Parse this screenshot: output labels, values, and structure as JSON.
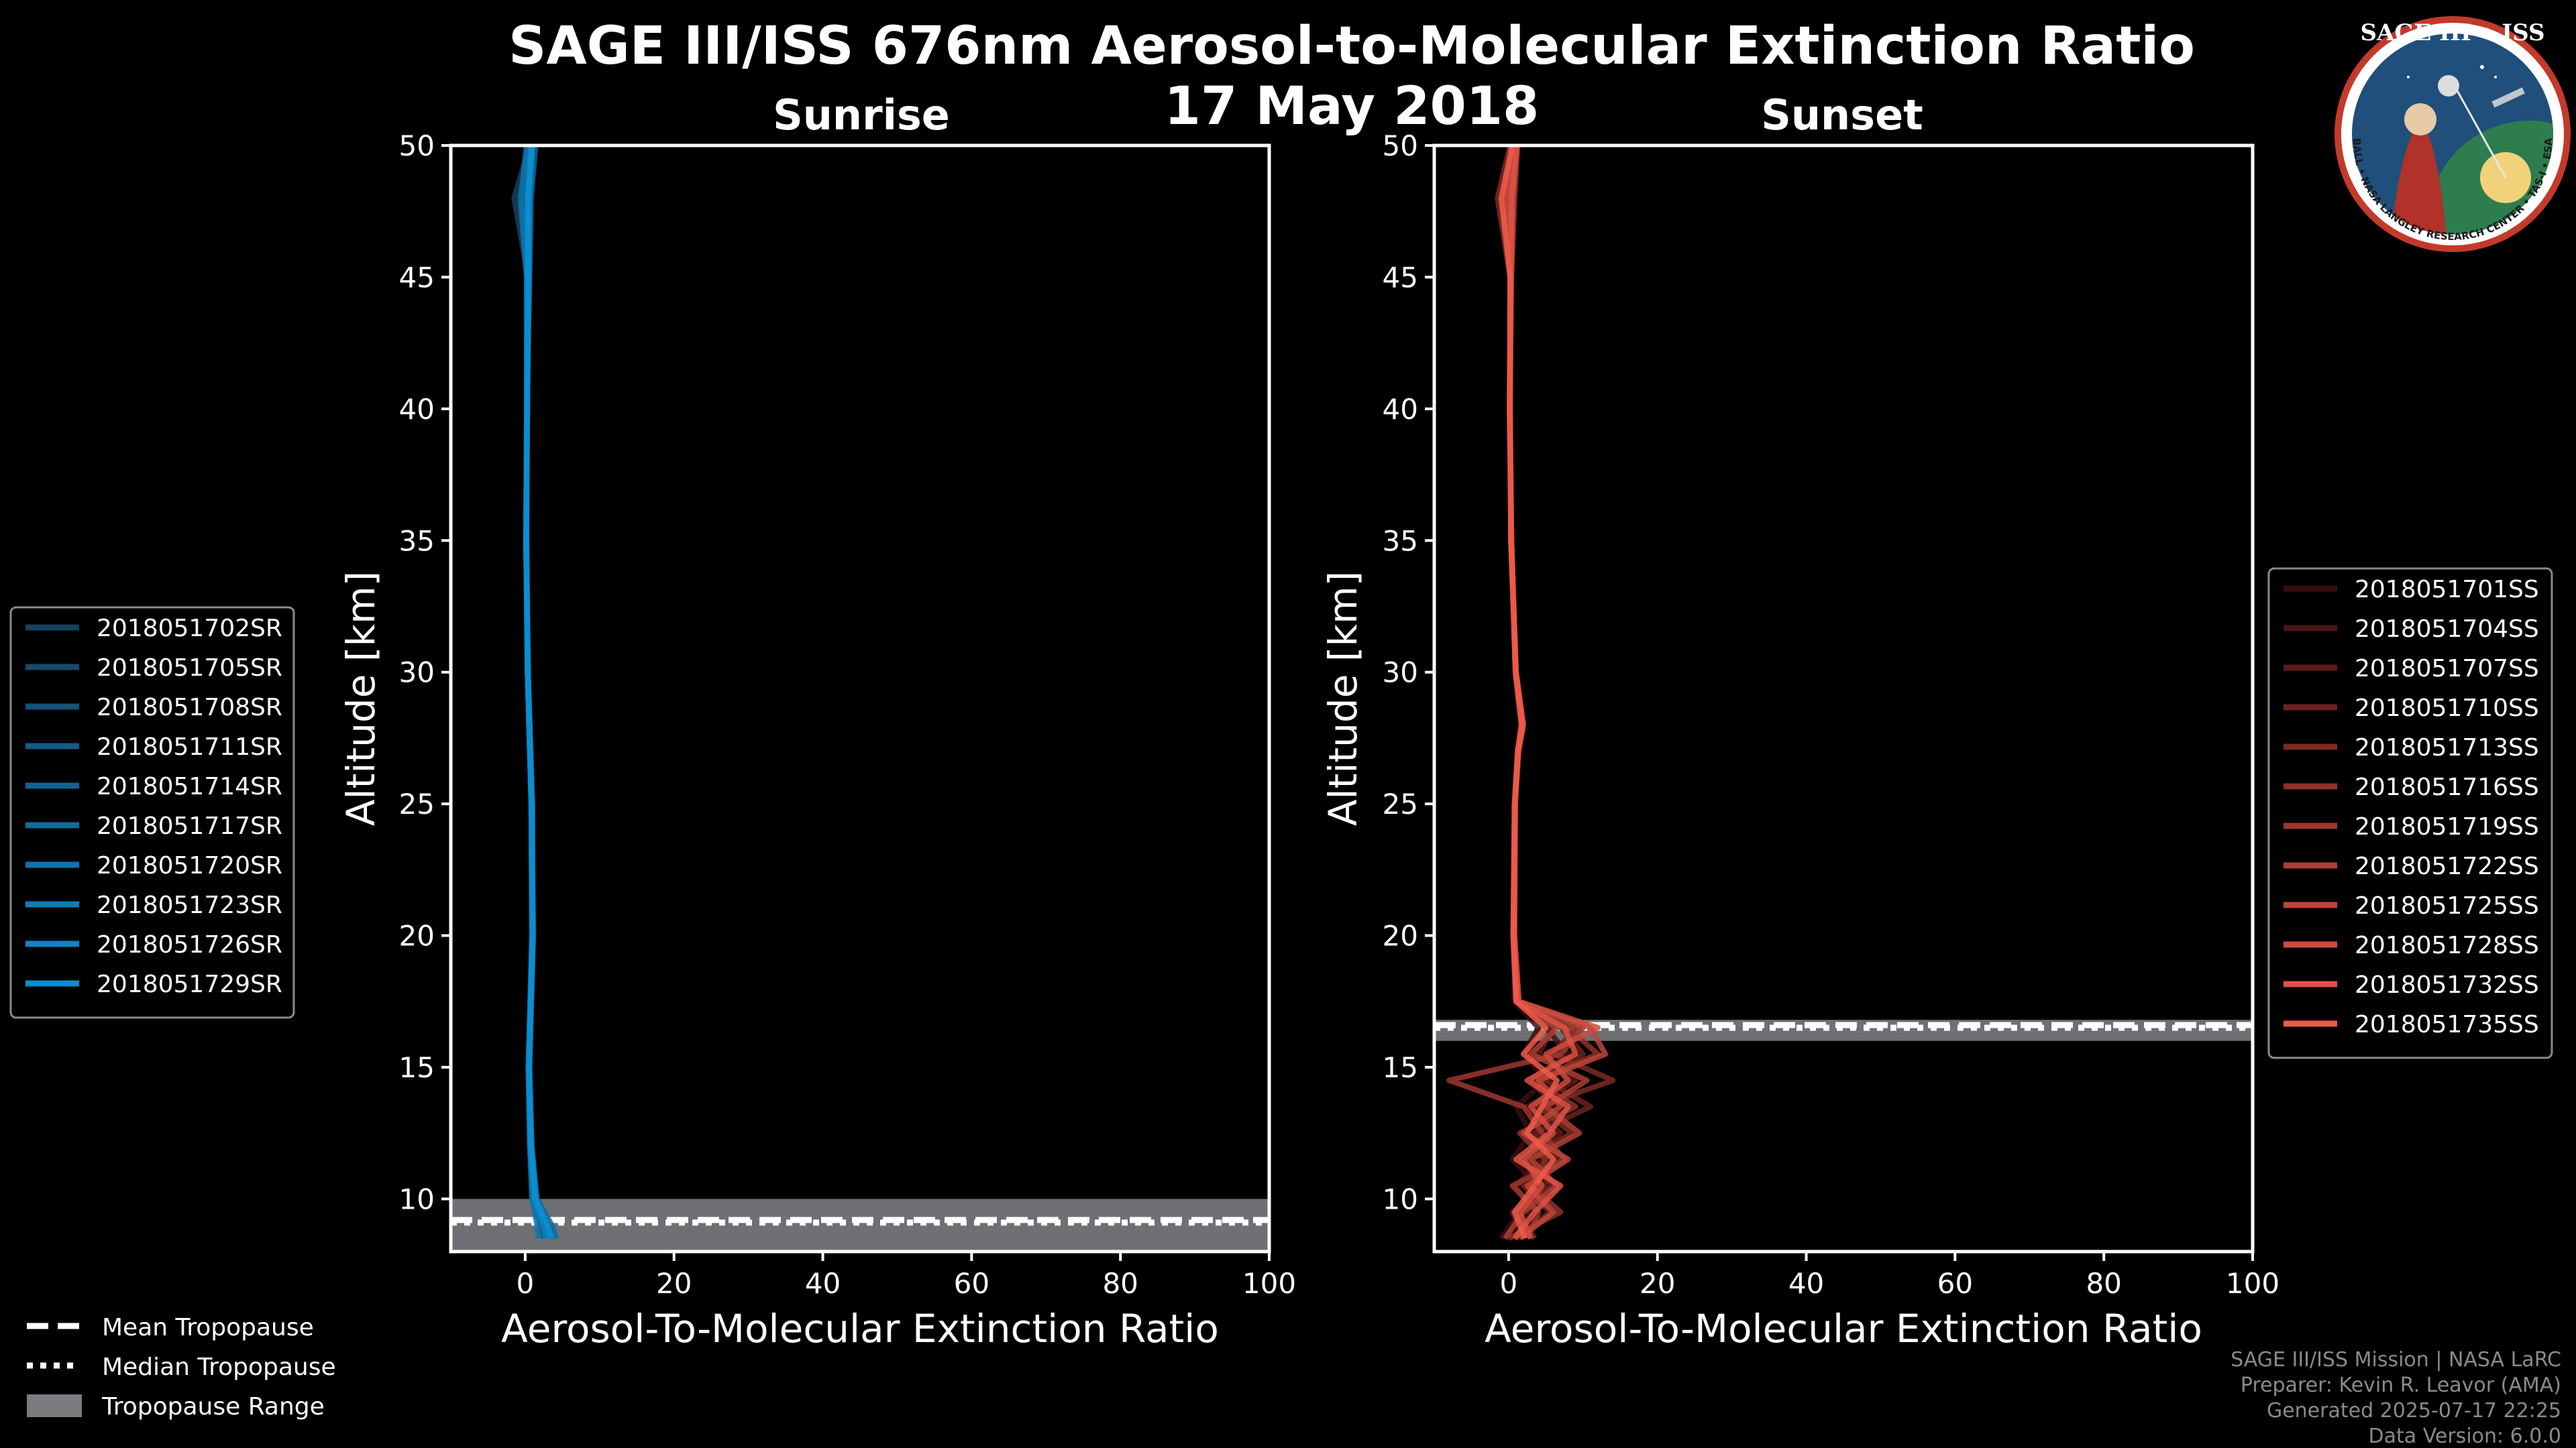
{
  "figure": {
    "title": "SAGE III/ISS 676nm Aerosol-to-Molecular Extinction Ratio",
    "subtitle": "17 May 2018",
    "credits": [
      "SAGE III/ISS Mission | NASA LaRC",
      "Preparer: Kevin R. Leavor (AMA)",
      "Generated 2025-07-17 22:25",
      "Data Version: 6.0.0"
    ],
    "logo": {
      "title": "SAGE III • ISS",
      "ring_text": "BALL • NASA LANGLEY RESEARCH CENTER • TAS-I • ESA"
    },
    "tropopause_legend": [
      {
        "label": "Mean Tropopause",
        "style": "dashed"
      },
      {
        "label": "Median Tropopause",
        "style": "dotted"
      },
      {
        "label": "Tropopause Range",
        "style": "band"
      }
    ]
  },
  "chart_data": [
    {
      "type": "line",
      "title": "Sunrise",
      "xlabel": "Aerosol-To-Molecular Extinction Ratio",
      "ylabel": "Altitude [km]",
      "xlim": [
        -10,
        100
      ],
      "ylim": [
        8,
        50
      ],
      "xticks": [
        0,
        20,
        40,
        60,
        80,
        100
      ],
      "yticks": [
        10,
        15,
        20,
        25,
        30,
        35,
        40,
        45,
        50
      ],
      "grid": false,
      "legend_position": "left-outside",
      "tropopause": {
        "mean": 9.2,
        "median": 9.1,
        "range": [
          8.0,
          10.0
        ]
      },
      "color_start": "#17405f",
      "color_end": "#0a8fd1",
      "series": [
        {
          "name": "2018051702SR",
          "altitude": [
            8.5,
            9,
            10,
            12,
            15,
            20,
            25,
            30,
            35,
            40,
            45,
            48,
            50
          ],
          "ratio": [
            2.6,
            2.4,
            1.2,
            0.7,
            0.5,
            0.9,
            0.8,
            0.3,
            0.1,
            0.2,
            0.4,
            -1.5,
            0.6
          ]
        },
        {
          "name": "2018051705SR",
          "altitude": [
            8.5,
            9,
            10,
            12,
            15,
            20,
            25,
            30,
            35,
            40,
            45,
            48,
            50
          ],
          "ratio": [
            3.0,
            2.8,
            1.3,
            0.8,
            0.6,
            1.0,
            0.9,
            0.3,
            0.1,
            0.3,
            0.2,
            -0.8,
            0.9
          ]
        },
        {
          "name": "2018051708SR",
          "altitude": [
            8.5,
            9,
            10,
            12,
            15,
            20,
            25,
            30,
            35,
            40,
            45,
            48,
            50
          ],
          "ratio": [
            3.4,
            3.1,
            1.5,
            0.8,
            0.5,
            1.1,
            0.9,
            0.4,
            0.2,
            0.2,
            0.5,
            -0.3,
            1.1
          ]
        },
        {
          "name": "2018051711SR",
          "altitude": [
            8.5,
            9,
            10,
            12,
            15,
            20,
            25,
            30,
            35,
            40,
            45,
            48,
            50
          ],
          "ratio": [
            3.8,
            3.2,
            1.4,
            0.9,
            0.6,
            1.0,
            1.0,
            0.4,
            0.1,
            0.3,
            0.3,
            0.2,
            0.4
          ]
        },
        {
          "name": "2018051714SR",
          "altitude": [
            8.5,
            9,
            10,
            12,
            15,
            20,
            25,
            30,
            35,
            40,
            45,
            48,
            50
          ],
          "ratio": [
            2.2,
            2.0,
            1.1,
            0.7,
            0.5,
            0.9,
            0.8,
            0.3,
            0.1,
            0.2,
            0.6,
            0.8,
            1.4
          ]
        },
        {
          "name": "2018051717SR",
          "altitude": [
            8.5,
            9,
            10,
            12,
            15,
            20,
            25,
            30,
            35,
            40,
            45,
            48,
            50
          ],
          "ratio": [
            4.2,
            3.6,
            1.6,
            0.9,
            0.6,
            1.1,
            0.9,
            0.4,
            0.2,
            0.3,
            0.4,
            0.1,
            0.7
          ]
        },
        {
          "name": "2018051720SR",
          "altitude": [
            8.5,
            9,
            10,
            12,
            15,
            20,
            25,
            30,
            35,
            40,
            45,
            48,
            50
          ],
          "ratio": [
            1.8,
            1.6,
            0.9,
            0.6,
            0.4,
            0.9,
            0.8,
            0.3,
            0.1,
            0.2,
            0.2,
            -0.6,
            0.2
          ]
        },
        {
          "name": "2018051723SR",
          "altitude": [
            8.5,
            9,
            10,
            12,
            15,
            20,
            25,
            30,
            35,
            40,
            45,
            48,
            50
          ],
          "ratio": [
            3.2,
            2.9,
            1.3,
            0.8,
            0.5,
            1.0,
            0.9,
            0.4,
            0.1,
            0.3,
            0.5,
            0.6,
            1.0
          ]
        },
        {
          "name": "2018051726SR",
          "altitude": [
            8.5,
            9,
            10,
            12,
            15,
            20,
            25,
            30,
            35,
            40,
            45,
            48,
            50
          ],
          "ratio": [
            2.8,
            2.5,
            1.2,
            0.7,
            0.5,
            1.0,
            0.8,
            0.3,
            0.2,
            0.2,
            0.3,
            0.3,
            0.8
          ]
        },
        {
          "name": "2018051729SR",
          "altitude": [
            8.5,
            9,
            10,
            12,
            15,
            20,
            25,
            30,
            35,
            40,
            45,
            48,
            50
          ],
          "ratio": [
            3.6,
            3.0,
            1.4,
            0.8,
            0.5,
            1.0,
            0.9,
            0.4,
            0.1,
            0.3,
            0.4,
            0.4,
            0.9
          ]
        }
      ]
    },
    {
      "type": "line",
      "title": "Sunset",
      "xlabel": "Aerosol-To-Molecular Extinction Ratio",
      "ylabel": "Altitude [km]",
      "xlim": [
        -10,
        100
      ],
      "ylim": [
        8,
        50
      ],
      "xticks": [
        0,
        20,
        40,
        60,
        80,
        100
      ],
      "yticks": [
        10,
        15,
        20,
        25,
        30,
        35,
        40,
        45,
        50
      ],
      "grid": false,
      "legend_position": "right-outside",
      "tropopause": {
        "mean": 16.6,
        "median": 16.5,
        "range": [
          16.0,
          16.8
        ]
      },
      "color_start": "#3b0e0e",
      "color_end": "#ef5a4a",
      "series": [
        {
          "name": "2018051701SS",
          "altitude": [
            8.5,
            9.5,
            10.5,
            11.5,
            12.5,
            13.5,
            14.5,
            15.5,
            16.5,
            17.5,
            20,
            25,
            27,
            28,
            30,
            35,
            40,
            45,
            48,
            50
          ],
          "ratio": [
            -1.0,
            1.5,
            4.0,
            0.5,
            3.0,
            1.0,
            5.0,
            2.0,
            4.0,
            0.8,
            0.6,
            0.7,
            1.2,
            1.8,
            0.9,
            0.4,
            0.1,
            0.3,
            -1.2,
            0.5
          ]
        },
        {
          "name": "2018051704SS",
          "altitude": [
            8.5,
            9.5,
            10.5,
            11.5,
            12.5,
            13.5,
            14.5,
            15.5,
            16.5,
            17.5,
            20,
            25,
            27,
            28,
            30,
            35,
            40,
            45,
            48,
            50
          ],
          "ratio": [
            0.5,
            3.0,
            1.0,
            4.5,
            2.0,
            6.0,
            3.0,
            8.0,
            5.0,
            1.0,
            0.6,
            0.8,
            1.3,
            1.9,
            1.0,
            0.4,
            0.2,
            0.2,
            0.4,
            0.8
          ]
        },
        {
          "name": "2018051707SS",
          "altitude": [
            8.5,
            9.5,
            10.5,
            11.5,
            12.5,
            13.5,
            14.5,
            15.5,
            16.5,
            17.5,
            20,
            25,
            27,
            28,
            30,
            35,
            40,
            45,
            48,
            50
          ],
          "ratio": [
            2.0,
            0.5,
            5.0,
            1.5,
            7.0,
            2.5,
            9.0,
            4.0,
            6.0,
            1.1,
            0.7,
            0.8,
            1.2,
            1.7,
            0.9,
            0.3,
            0.1,
            0.4,
            -0.5,
            0.3
          ]
        },
        {
          "name": "2018051710SS",
          "altitude": [
            8.5,
            9.5,
            10.5,
            11.5,
            12.5,
            13.5,
            14.5,
            15.5,
            16.5,
            17.5,
            20,
            25,
            27,
            28,
            30,
            35,
            40,
            45,
            48,
            50
          ],
          "ratio": [
            1.0,
            5.5,
            2.0,
            6.5,
            3.5,
            11.0,
            5.0,
            10.0,
            7.0,
            1.2,
            0.7,
            0.9,
            1.4,
            2.0,
            1.0,
            0.4,
            0.2,
            0.3,
            0.6,
            1.0
          ]
        },
        {
          "name": "2018051713SS",
          "altitude": [
            8.5,
            9.5,
            10.5,
            11.5,
            12.5,
            13.5,
            14.5,
            15.5,
            16.5,
            17.5,
            20,
            25,
            27,
            28,
            30,
            35,
            40,
            45,
            48,
            50
          ],
          "ratio": [
            3.5,
            1.0,
            6.0,
            2.5,
            8.5,
            4.0,
            14.0,
            6.0,
            9.0,
            1.0,
            0.6,
            0.8,
            1.2,
            1.8,
            0.9,
            0.3,
            0.2,
            0.2,
            -1.5,
            0.2
          ]
        },
        {
          "name": "2018051716SS",
          "altitude": [
            8.5,
            9.5,
            10.5,
            11.5,
            12.5,
            13.5,
            14.5,
            15.5,
            16.5,
            17.5,
            20,
            25,
            27,
            28,
            30,
            35,
            40,
            45,
            48,
            50
          ],
          "ratio": [
            0.0,
            7.0,
            3.0,
            5.0,
            1.5,
            9.0,
            3.5,
            12.0,
            8.0,
            1.3,
            0.8,
            0.9,
            1.3,
            1.9,
            1.0,
            0.4,
            0.1,
            0.3,
            0.2,
            0.7
          ]
        },
        {
          "name": "2018051719SS",
          "altitude": [
            8.5,
            9.5,
            10.5,
            11.5,
            12.5,
            13.5,
            14.5,
            15.5,
            16.5,
            17.5,
            20,
            25,
            27,
            28,
            30,
            35,
            40,
            45,
            48,
            50
          ],
          "ratio": [
            2.5,
            4.0,
            0.5,
            7.5,
            4.5,
            2.0,
            -8.0,
            7.0,
            10.0,
            1.1,
            0.7,
            0.8,
            1.2,
            1.7,
            0.9,
            0.3,
            0.2,
            0.4,
            0.8,
            1.2
          ]
        },
        {
          "name": "2018051722SS",
          "altitude": [
            8.5,
            9.5,
            10.5,
            11.5,
            12.5,
            13.5,
            14.5,
            15.5,
            16.5,
            17.5,
            20,
            25,
            27,
            28,
            30,
            35,
            40,
            45,
            48,
            50
          ],
          "ratio": [
            -0.5,
            2.0,
            6.5,
            3.0,
            9.5,
            5.0,
            10.5,
            3.0,
            6.5,
            1.0,
            0.6,
            0.8,
            1.3,
            1.8,
            0.9,
            0.4,
            0.1,
            0.2,
            -0.8,
            0.4
          ]
        },
        {
          "name": "2018051725SS",
          "altitude": [
            8.5,
            9.5,
            10.5,
            11.5,
            12.5,
            13.5,
            14.5,
            15.5,
            16.5,
            17.5,
            20,
            25,
            27,
            28,
            30,
            35,
            40,
            45,
            48,
            50
          ],
          "ratio": [
            1.5,
            6.0,
            2.5,
            8.0,
            2.0,
            7.0,
            4.0,
            13.0,
            11.0,
            1.2,
            0.7,
            0.9,
            1.3,
            2.0,
            1.0,
            0.4,
            0.2,
            0.3,
            0.3,
            0.9
          ]
        },
        {
          "name": "2018051728SS",
          "altitude": [
            8.5,
            9.5,
            10.5,
            11.5,
            12.5,
            13.5,
            14.5,
            15.5,
            16.5,
            17.5,
            20,
            25,
            27,
            28,
            30,
            35,
            40,
            45,
            48,
            50
          ],
          "ratio": [
            3.0,
            1.5,
            4.5,
            2.0,
            6.0,
            3.0,
            8.0,
            5.0,
            12.0,
            1.4,
            0.8,
            0.9,
            1.2,
            1.8,
            1.0,
            0.3,
            0.2,
            0.2,
            -0.3,
            0.6
          ]
        },
        {
          "name": "2018051732SS",
          "altitude": [
            8.5,
            9.5,
            10.5,
            11.5,
            12.5,
            13.5,
            14.5,
            15.5,
            16.5,
            17.5,
            20,
            25,
            27,
            28,
            30,
            35,
            40,
            45,
            48,
            50
          ],
          "ratio": [
            0.8,
            3.5,
            7.0,
            1.0,
            5.5,
            8.0,
            2.5,
            9.0,
            7.5,
            1.1,
            0.7,
            0.8,
            1.2,
            1.7,
            0.9,
            0.4,
            0.1,
            0.3,
            0.5,
            1.1
          ]
        },
        {
          "name": "2018051735SS",
          "altitude": [
            8.5,
            9.5,
            10.5,
            11.5,
            12.5,
            13.5,
            14.5,
            15.5,
            16.5,
            17.5,
            20,
            25,
            27,
            28,
            30,
            35,
            40,
            45,
            48,
            50
          ],
          "ratio": [
            2.2,
            0.8,
            3.5,
            6.0,
            2.5,
            4.5,
            6.5,
            2.0,
            5.0,
            1.0,
            0.6,
            0.8,
            1.3,
            1.9,
            1.0,
            0.3,
            0.2,
            0.2,
            -1.0,
            0.5
          ]
        }
      ]
    }
  ]
}
